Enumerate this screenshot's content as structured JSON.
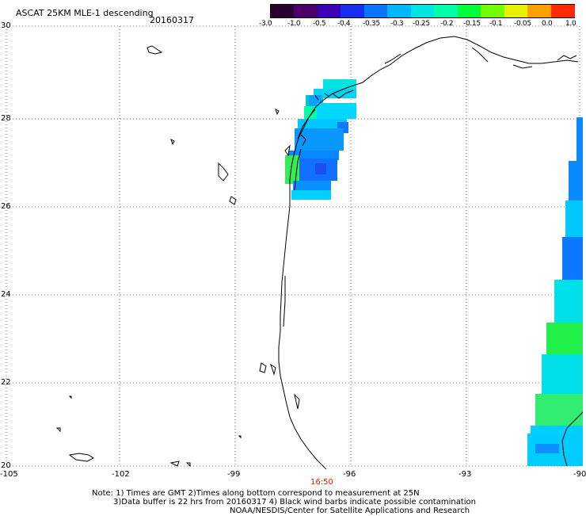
{
  "header": {
    "title": "ASCAT 25KM MLE-1 descending",
    "date": "20160317"
  },
  "colorbar": {
    "labels": [
      "-3.0",
      "-1.0",
      "-0.5",
      "-0.4",
      "-0.35",
      "-0.3",
      "-0.25",
      "-0.2",
      "-0.15",
      "-0.1",
      "-0.05",
      "0.0",
      "1.0"
    ],
    "colors": [
      "#2a0033",
      "#4a0066",
      "#3b00b5",
      "#1830ee",
      "#0b75ff",
      "#00b6ff",
      "#00e5e0",
      "#00ffa8",
      "#00ff3a",
      "#74ff00",
      "#e6f200",
      "#ffa000",
      "#ff2a00"
    ]
  },
  "map": {
    "lat_labels": [
      "30",
      "28",
      "26",
      "24",
      "22",
      "20"
    ],
    "lon_labels": [
      "-105",
      "-102",
      "-99",
      "-96",
      "-93",
      "-90"
    ],
    "time_label": "16:50",
    "time_color": "#cc2200",
    "grid_color": "#777777",
    "coast_color": "#000000"
  },
  "footer": {
    "line1": "Note: 1) Times are GMT 2)Times along bottom correspond to measurement at 25N",
    "line2": "3)Data buffer is 22 hrs from 20160317 4) Black wind barbs indicate possible contamination",
    "line3": "NOAA/NESDIS/Center for Satellite Applications and Research"
  }
}
